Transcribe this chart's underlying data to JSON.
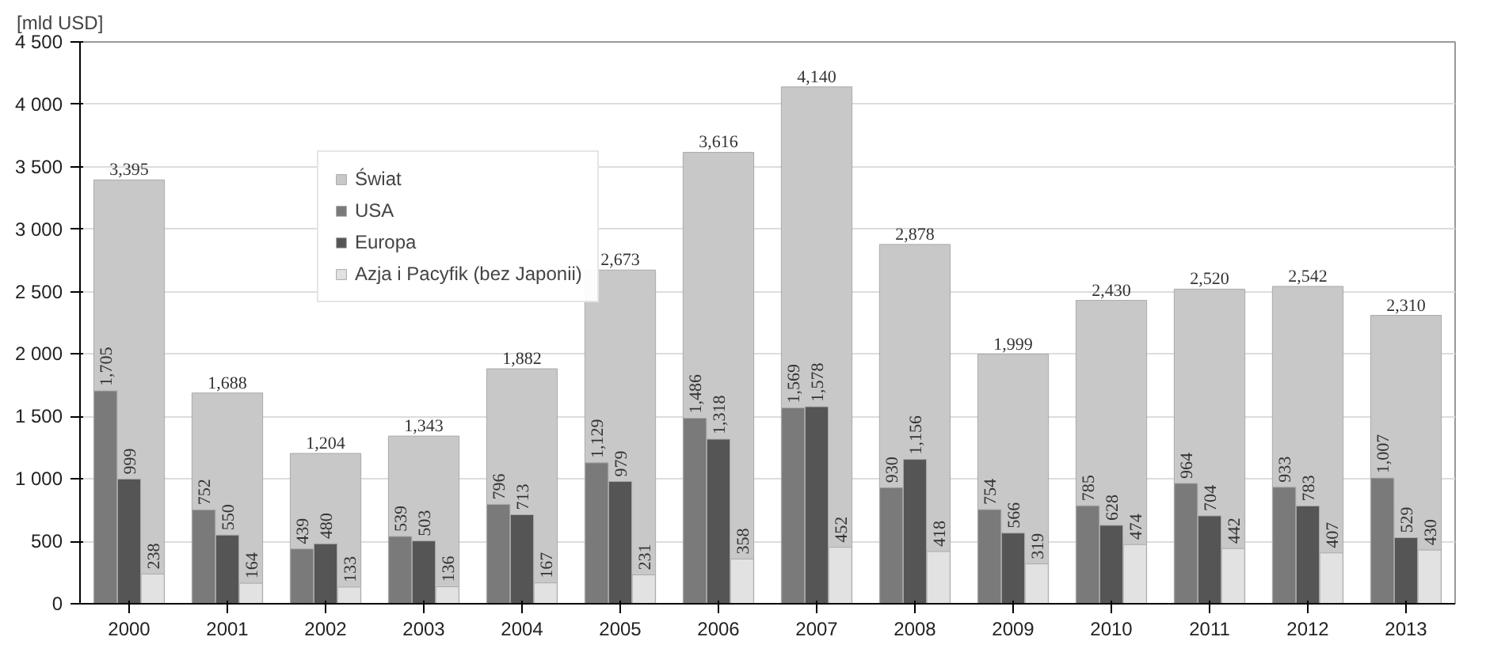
{
  "chart_data": {
    "type": "bar",
    "ylabel": "[mld USD]",
    "categories": [
      "2000",
      "2001",
      "2002",
      "2003",
      "2004",
      "2005",
      "2006",
      "2007",
      "2008",
      "2009",
      "2010",
      "2011",
      "2012",
      "2013"
    ],
    "series": [
      {
        "name": "Świat",
        "color": "#c8c8c8",
        "values": [
          3395,
          1688,
          1204,
          1343,
          1882,
          2673,
          3616,
          4140,
          2878,
          1999,
          2430,
          2520,
          2542,
          2310
        ],
        "value_labels": [
          "3,395",
          "1,688",
          "1,204",
          "1,343",
          "1,882",
          "2,673",
          "3,616",
          "4,140",
          "2,878",
          "1,999",
          "2,430",
          "2,520",
          "2,542",
          "2,310"
        ]
      },
      {
        "name": "USA",
        "color": "#7a7a7a",
        "values": [
          1705,
          752,
          439,
          539,
          796,
          1129,
          1486,
          1569,
          930,
          754,
          785,
          964,
          933,
          1007
        ],
        "value_labels": [
          "1,705",
          "752",
          "439",
          "539",
          "796",
          "1,129",
          "1,486",
          "1,569",
          "930",
          "754",
          "785",
          "964",
          "933",
          "1,007"
        ]
      },
      {
        "name": "Europa",
        "color": "#555555",
        "values": [
          999,
          550,
          480,
          503,
          713,
          979,
          1318,
          1578,
          1156,
          566,
          628,
          704,
          783,
          529
        ],
        "value_labels": [
          "999",
          "550",
          "480",
          "503",
          "713",
          "979",
          "1,318",
          "1,578",
          "1,156",
          "566",
          "628",
          "704",
          "783",
          "529"
        ]
      },
      {
        "name": "Azja i Pacyfik (bez Japonii)",
        "color": "#e2e2e2",
        "values": [
          238,
          164,
          133,
          136,
          167,
          231,
          358,
          452,
          418,
          319,
          474,
          442,
          407,
          430
        ],
        "value_labels": [
          "238",
          "164",
          "133",
          "136",
          "167",
          "231",
          "358",
          "452",
          "418",
          "319",
          "474",
          "442",
          "407",
          "430"
        ]
      }
    ],
    "ylim": [
      0,
      4500
    ],
    "yticks": [
      0,
      500,
      {
        "value": 1000,
        "label": "1 000"
      },
      {
        "value": 1500,
        "label": "1 500"
      },
      {
        "value": 2000,
        "label": "2 000"
      },
      {
        "value": 2500,
        "label": "2 500"
      },
      {
        "value": 3000,
        "label": "3 000"
      },
      {
        "value": 3500,
        "label": "3 500"
      },
      {
        "value": 4000,
        "label": "4 000"
      },
      {
        "value": 4500,
        "label": "4 500"
      }
    ],
    "grid": "y",
    "legend": "top left"
  }
}
